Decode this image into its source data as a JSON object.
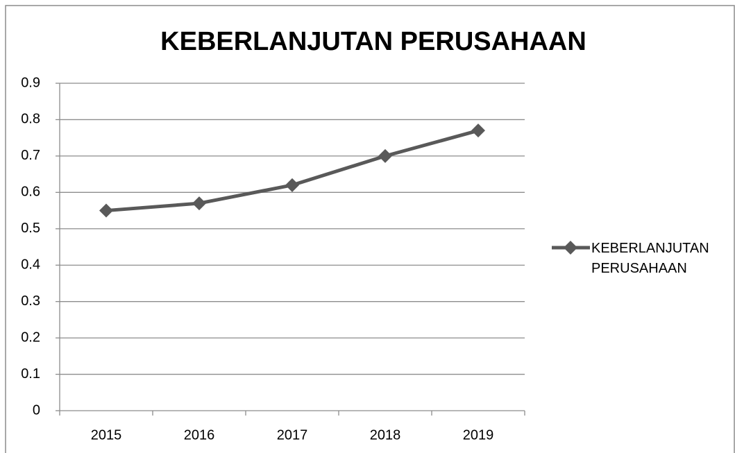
{
  "chart_data": {
    "type": "line",
    "title": "KEBERLANJUTAN PERUSAHAAN",
    "categories": [
      "2015",
      "2016",
      "2017",
      "2018",
      "2019"
    ],
    "series": [
      {
        "name": "KEBERLANJUTAN PERUSAHAAN",
        "color": "#595959",
        "values": [
          0.55,
          0.57,
          0.62,
          0.7,
          0.77
        ]
      }
    ],
    "ylim": [
      0,
      0.9
    ],
    "yticks": [
      0,
      0.1,
      0.2,
      0.3,
      0.4,
      0.5,
      0.6,
      0.7,
      0.8,
      0.9
    ],
    "grid": true,
    "legend": "right"
  }
}
